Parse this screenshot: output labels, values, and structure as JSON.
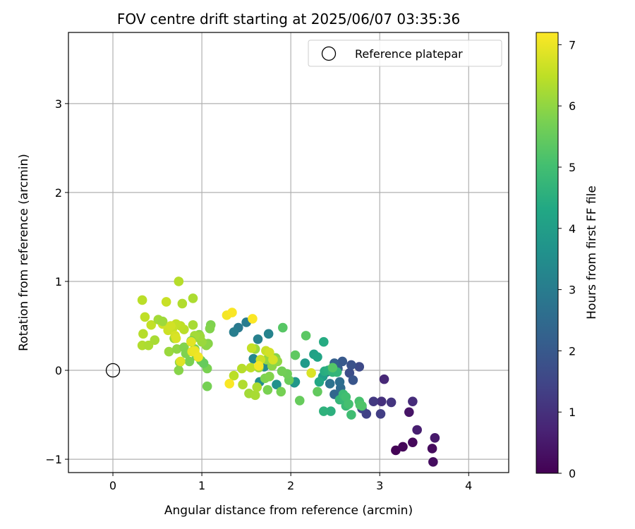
{
  "chart_data": {
    "type": "scatter",
    "title": "FOV centre drift starting at 2025/06/07 03:35:36",
    "xlabel": "Angular distance from reference (arcmin)",
    "ylabel": "Rotation from reference (arcmin)",
    "xlim": [
      -0.5,
      4.45
    ],
    "ylim": [
      -1.15,
      3.8
    ],
    "xticks": [
      0,
      1,
      2,
      3,
      4
    ],
    "xtick_labels": [
      "0",
      "1",
      "2",
      "3",
      "4"
    ],
    "yticks": [
      -1,
      0,
      1,
      2,
      3
    ],
    "ytick_labels": [
      "−1",
      "0",
      "1",
      "2",
      "3"
    ],
    "grid": true,
    "legend": {
      "placement": "top-right",
      "entries": [
        {
          "label": "Reference platepar",
          "marker": "open-circle"
        }
      ]
    },
    "reference_point": {
      "x": 0,
      "y": 0
    },
    "colorbar": {
      "label": "Hours from first FF file",
      "range": [
        0,
        7.2
      ],
      "ticks": [
        0,
        1,
        2,
        3,
        4,
        5,
        6,
        7
      ],
      "tick_labels": [
        "0",
        "1",
        "2",
        "3",
        "4",
        "5",
        "6",
        "7"
      ],
      "colormap": "viridis"
    },
    "points": [
      [
        3.18,
        -0.9,
        0.05
      ],
      [
        3.26,
        -0.86,
        0.1
      ],
      [
        3.37,
        -0.81,
        0.15
      ],
      [
        3.59,
        -0.88,
        0.2
      ],
      [
        3.6,
        -1.03,
        0.25
      ],
      [
        3.62,
        -0.76,
        0.5
      ],
      [
        3.42,
        -0.67,
        0.6
      ],
      [
        3.33,
        -0.47,
        0.4
      ],
      [
        3.05,
        -0.1,
        0.8
      ],
      [
        3.37,
        -0.35,
        0.9
      ],
      [
        3.02,
        -0.35,
        1.0
      ],
      [
        3.13,
        -0.36,
        1.1
      ],
      [
        2.93,
        -0.35,
        1.2
      ],
      [
        3.01,
        -0.49,
        1.3
      ],
      [
        2.85,
        -0.49,
        1.4
      ],
      [
        2.8,
        -0.43,
        1.5
      ],
      [
        2.77,
        0.04,
        1.6
      ],
      [
        2.66,
        -0.03,
        1.7
      ],
      [
        2.68,
        0.06,
        1.8
      ],
      [
        2.7,
        -0.11,
        1.9
      ],
      [
        2.58,
        0.1,
        2.0
      ],
      [
        2.53,
        0.02,
        2.1
      ],
      [
        2.49,
        0.08,
        2.2
      ],
      [
        2.45,
        -0.01,
        2.3
      ],
      [
        2.49,
        -0.27,
        2.4
      ],
      [
        2.56,
        -0.2,
        2.5
      ],
      [
        2.55,
        -0.13,
        2.6
      ],
      [
        2.44,
        -0.15,
        2.7
      ],
      [
        2.4,
        -0.02,
        2.8
      ],
      [
        1.41,
        0.48,
        2.9
      ],
      [
        1.5,
        0.54,
        3.0
      ],
      [
        1.36,
        0.43,
        3.05
      ],
      [
        1.63,
        0.35,
        3.1
      ],
      [
        1.75,
        0.41,
        3.2
      ],
      [
        1.58,
        0.13,
        3.3
      ],
      [
        1.7,
        0.04,
        3.4
      ],
      [
        1.65,
        -0.13,
        3.5
      ],
      [
        1.84,
        -0.16,
        3.6
      ],
      [
        2.04,
        -0.14,
        3.7
      ],
      [
        2.05,
        -0.13,
        3.8
      ],
      [
        2.16,
        0.08,
        3.9
      ],
      [
        2.36,
        -0.07,
        4.0
      ],
      [
        2.26,
        0.18,
        4.1
      ],
      [
        2.3,
        0.15,
        4.2
      ],
      [
        2.32,
        -0.13,
        4.3
      ],
      [
        2.37,
        0.32,
        4.4
      ],
      [
        2.38,
        -0.01,
        4.45
      ],
      [
        2.42,
        0.0,
        4.5
      ],
      [
        2.45,
        -0.46,
        4.55
      ],
      [
        2.37,
        -0.46,
        4.6
      ],
      [
        2.47,
        -0.02,
        4.65
      ],
      [
        2.52,
        -0.02,
        4.7
      ],
      [
        2.55,
        -0.33,
        4.75
      ],
      [
        2.6,
        -0.33,
        4.8
      ],
      [
        2.62,
        -0.4,
        4.85
      ],
      [
        2.59,
        -0.27,
        4.9
      ],
      [
        2.68,
        -0.5,
        4.95
      ],
      [
        2.62,
        -0.3,
        5.0
      ],
      [
        2.65,
        -0.38,
        5.05
      ],
      [
        2.77,
        -0.35,
        5.1
      ],
      [
        2.78,
        -0.39,
        5.15
      ],
      [
        2.8,
        -0.4,
        5.2
      ],
      [
        2.47,
        0.03,
        5.25
      ],
      [
        1.91,
        0.48,
        5.3
      ],
      [
        2.17,
        0.39,
        5.35
      ],
      [
        2.05,
        0.17,
        5.4
      ],
      [
        2.3,
        -0.24,
        5.45
      ],
      [
        2.1,
        -0.34,
        5.5
      ],
      [
        1.98,
        -0.11,
        5.55
      ],
      [
        1.96,
        -0.04,
        5.6
      ],
      [
        1.9,
        -0.01,
        5.65
      ],
      [
        1.89,
        -0.24,
        5.7
      ],
      [
        1.74,
        -0.22,
        5.75
      ],
      [
        1.71,
        -0.09,
        5.8
      ],
      [
        1.76,
        -0.07,
        5.85
      ],
      [
        1.83,
        0.14,
        5.9
      ],
      [
        1.79,
        0.05,
        5.95
      ],
      [
        1.85,
        0.1,
        6.0
      ],
      [
        1.73,
        0.12,
        6.05
      ],
      [
        1.6,
        0.24,
        6.1
      ],
      [
        1.64,
        0.03,
        6.15
      ],
      [
        1.53,
        -0.26,
        6.2
      ],
      [
        1.6,
        -0.28,
        6.25
      ],
      [
        1.62,
        -0.19,
        6.3
      ],
      [
        1.46,
        -0.16,
        6.35
      ],
      [
        1.45,
        0.02,
        6.4
      ],
      [
        1.36,
        -0.06,
        6.45
      ],
      [
        1.55,
        0.03,
        6.5
      ],
      [
        1.56,
        0.25,
        6.55
      ],
      [
        1.72,
        0.22,
        6.6
      ],
      [
        1.66,
        0.12,
        6.65
      ],
      [
        1.76,
        0.2,
        6.7
      ],
      [
        1.8,
        0.12,
        6.75
      ],
      [
        2.23,
        -0.03,
        6.8
      ],
      [
        1.06,
        -0.18,
        5.7
      ],
      [
        1.06,
        0.02,
        5.75
      ],
      [
        1.1,
        0.51,
        5.8
      ],
      [
        1.09,
        0.47,
        5.85
      ],
      [
        1.07,
        0.3,
        5.9
      ],
      [
        1.05,
        0.28,
        5.95
      ],
      [
        0.97,
        0.4,
        6.0
      ],
      [
        0.96,
        0.37,
        6.05
      ],
      [
        1.0,
        0.32,
        6.1
      ],
      [
        0.98,
        0.38,
        6.15
      ],
      [
        0.92,
        0.39,
        6.2
      ],
      [
        0.9,
        0.51,
        6.25
      ],
      [
        0.9,
        0.81,
        6.3
      ],
      [
        0.78,
        0.75,
        6.35
      ],
      [
        0.74,
        1.0,
        6.4
      ],
      [
        0.8,
        0.46,
        6.45
      ],
      [
        0.76,
        0.5,
        6.5
      ],
      [
        0.71,
        0.52,
        6.55
      ],
      [
        0.67,
        0.47,
        6.6
      ],
      [
        0.62,
        0.45,
        6.65
      ],
      [
        0.56,
        0.52,
        6.7
      ],
      [
        0.6,
        0.77,
        6.6
      ],
      [
        0.43,
        0.51,
        6.55
      ],
      [
        0.36,
        0.6,
        6.5
      ],
      [
        0.33,
        0.79,
        6.45
      ],
      [
        0.34,
        0.41,
        6.4
      ],
      [
        0.33,
        0.28,
        6.35
      ],
      [
        0.4,
        0.28,
        6.3
      ],
      [
        0.47,
        0.34,
        6.25
      ],
      [
        0.51,
        0.57,
        6.2
      ],
      [
        0.56,
        0.55,
        6.15
      ],
      [
        0.63,
        0.21,
        6.1
      ],
      [
        0.69,
        0.36,
        6.05
      ],
      [
        0.72,
        0.24,
        6.0
      ],
      [
        0.75,
        0.09,
        5.95
      ],
      [
        0.74,
        0.0,
        5.9
      ],
      [
        0.8,
        0.26,
        5.85
      ],
      [
        0.82,
        0.19,
        5.8
      ],
      [
        0.86,
        0.1,
        5.75
      ],
      [
        0.88,
        0.33,
        5.7
      ],
      [
        0.92,
        0.24,
        5.65
      ],
      [
        0.94,
        0.16,
        5.6
      ],
      [
        0.99,
        0.11,
        5.55
      ],
      [
        1.02,
        0.08,
        5.5
      ],
      [
        0.65,
        0.5,
        6.7
      ],
      [
        0.7,
        0.39,
        6.75
      ],
      [
        0.71,
        0.36,
        6.8
      ],
      [
        0.76,
        0.1,
        6.85
      ],
      [
        0.88,
        0.32,
        6.9
      ],
      [
        0.89,
        0.21,
        6.95
      ],
      [
        0.92,
        0.22,
        7.0
      ],
      [
        0.96,
        0.15,
        7.05
      ],
      [
        1.28,
        0.62,
        7.1
      ],
      [
        1.34,
        0.65,
        7.15
      ],
      [
        1.57,
        0.58,
        7.18
      ],
      [
        1.31,
        -0.15,
        7.16
      ],
      [
        1.64,
        0.05,
        7.12
      ]
    ]
  }
}
